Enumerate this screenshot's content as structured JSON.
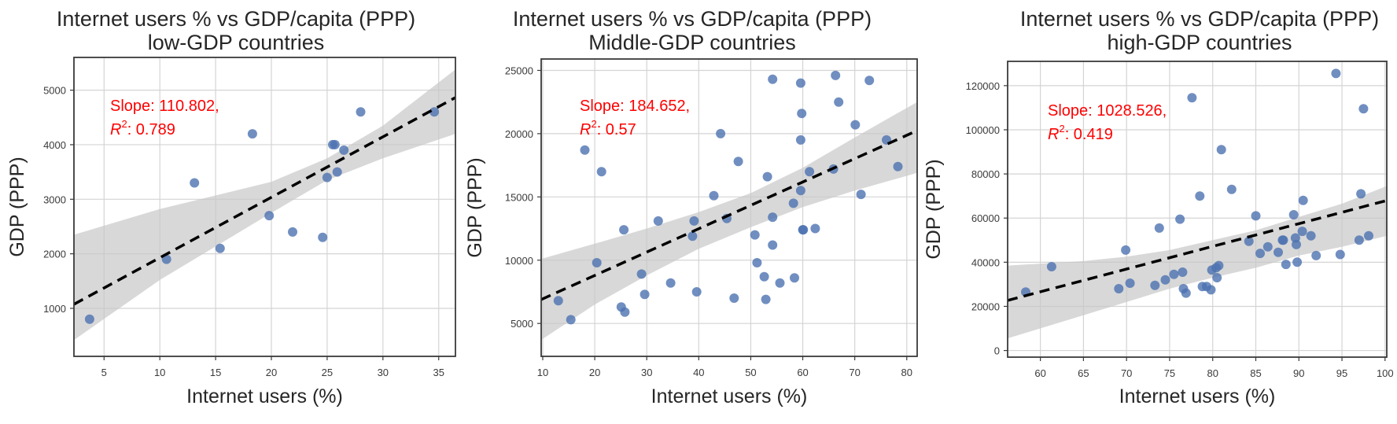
{
  "chart_data": [
    {
      "type": "scatter",
      "title_line1": "Internet users % vs GDP/capita (PPP)",
      "title_line2": "low-GDP countries",
      "xlabel": "Internet users (%)",
      "ylabel": "GDP (PPP)",
      "xlim": [
        2.3,
        36.5
      ],
      "ylim": [
        120,
        5600
      ],
      "xticks": [
        5,
        10,
        15,
        20,
        25,
        30,
        35
      ],
      "yticks": [
        1000,
        2000,
        3000,
        4000,
        5000
      ],
      "grid": true,
      "annotation_slope": "Slope: 110.802,",
      "annotation_r2_label": "R",
      "annotation_r2_sup": "2",
      "annotation_r2_value": ": 0.789",
      "fit": {
        "slope": 110.802,
        "intercept": 820,
        "r2": 0.789
      },
      "ci_band": {
        "x": [
          2.3,
          10,
          20,
          25,
          30,
          36.5
        ],
        "upper": [
          2350,
          2820,
          3320,
          3750,
          4350,
          5380
        ],
        "lower": [
          420,
          1520,
          2750,
          3350,
          3750,
          4200
        ]
      },
      "points": {
        "x": [
          3.7,
          10.6,
          13.1,
          15.4,
          18.3,
          19.8,
          21.9,
          24.6,
          25.0,
          25.5,
          25.7,
          25.9,
          26.5,
          28.0,
          34.6
        ],
        "y": [
          800,
          1900,
          3300,
          2100,
          4200,
          2700,
          2400,
          2300,
          3400,
          4000,
          4000,
          3500,
          3900,
          4600,
          4600
        ]
      }
    },
    {
      "type": "scatter",
      "title_line1": "Internet users % vs GDP/capita (PPP)",
      "title_line2": "Middle-GDP countries",
      "xlabel": "Internet users (%)",
      "ylabel": "GDP (PPP)",
      "xlim": [
        9.7,
        82
      ],
      "ylim": [
        2400,
        25900
      ],
      "xticks": [
        10,
        20,
        30,
        40,
        50,
        60,
        70,
        80
      ],
      "yticks": [
        5000,
        10000,
        15000,
        20000,
        25000
      ],
      "grid": true,
      "annotation_slope": "Slope: 184.652,",
      "annotation_r2_label": "R",
      "annotation_r2_sup": "2",
      "annotation_r2_value": ": 0.57",
      "fit": {
        "slope": 184.652,
        "intercept": 5100,
        "r2": 0.57
      },
      "ci_band": {
        "x": [
          9.7,
          20,
          30,
          40,
          50,
          60,
          70,
          82
        ],
        "upper": [
          10100,
          11300,
          12500,
          13800,
          15300,
          17300,
          19700,
          22500
        ],
        "lower": [
          3700,
          6500,
          8800,
          10900,
          12600,
          14200,
          15500,
          16900
        ]
      },
      "points": {
        "x": [
          13.0,
          15.4,
          18.1,
          20.4,
          21.3,
          25.1,
          25.6,
          25.8,
          29.0,
          29.6,
          32.2,
          34.6,
          38.8,
          39.1,
          39.6,
          42.9,
          44.2,
          45.4,
          46.8,
          47.6,
          50.8,
          51.2,
          52.6,
          52.9,
          53.2,
          54.2,
          54.2,
          54.2,
          55.6,
          58.2,
          58.4,
          59.6,
          59.6,
          59.6,
          59.8,
          60.0,
          60.1,
          61.3,
          62.4,
          65.9,
          66.3,
          66.9,
          70.1,
          71.2,
          72.8,
          76.1,
          78.3
        ],
        "y": [
          6800,
          5300,
          18700,
          9800,
          17000,
          6300,
          12400,
          5900,
          8900,
          7300,
          13100,
          8200,
          11900,
          13100,
          7500,
          15100,
          20000,
          13300,
          7000,
          17800,
          12000,
          9800,
          8700,
          6900,
          16600,
          24300,
          13400,
          11200,
          8200,
          14500,
          8600,
          24000,
          19500,
          15500,
          21600,
          12400,
          12400,
          17000,
          12500,
          17200,
          24600,
          22500,
          20700,
          15200,
          24200,
          19500,
          17400
        ]
      }
    },
    {
      "type": "scatter",
      "title_line1": "Internet users % vs GDP/capita (PPP)",
      "title_line2": "high-GDP countries",
      "xlabel": "Internet users (%)",
      "ylabel": "GDP (PPP)",
      "xlim": [
        56.2,
        100.2
      ],
      "ylim": [
        -3000,
        131000
      ],
      "xticks": [
        60,
        65,
        70,
        75,
        80,
        85,
        90,
        95,
        100
      ],
      "yticks": [
        0,
        20000,
        40000,
        60000,
        80000,
        100000,
        120000
      ],
      "grid": true,
      "annotation_slope": "Slope: 1028.526,",
      "annotation_r2_label": "R",
      "annotation_r2_sup": "2",
      "annotation_r2_value": ": 0.419",
      "fit": {
        "slope": 1028.526,
        "intercept": -35100,
        "r2": 0.419
      },
      "ci_band": {
        "x": [
          56.2,
          65,
          70,
          75,
          80,
          85,
          90,
          95,
          100.2
        ],
        "upper": [
          38500,
          40500,
          42500,
          45500,
          50000,
          54500,
          60500,
          66500,
          74500
        ],
        "lower": [
          5500,
          16000,
          22000,
          28000,
          33000,
          37500,
          43000,
          47000,
          52000
        ]
      },
      "points": {
        "x": [
          58.3,
          61.3,
          69.1,
          69.9,
          70.4,
          73.3,
          73.8,
          74.5,
          75.5,
          76.2,
          76.5,
          76.6,
          76.9,
          77.6,
          78.5,
          78.8,
          79.3,
          79.8,
          79.9,
          80.4,
          80.5,
          80.7,
          81.0,
          82.2,
          84.2,
          85.0,
          85.5,
          86.4,
          87.6,
          88.1,
          88.2,
          88.5,
          89.4,
          89.6,
          89.7,
          89.8,
          90.4,
          90.5,
          91.4,
          92.0,
          94.3,
          94.8,
          97.0,
          97.2,
          97.5,
          98.1
        ],
        "y": [
          26500,
          38000,
          28000,
          45500,
          30500,
          29500,
          55500,
          32000,
          34500,
          59500,
          35500,
          28000,
          26000,
          114500,
          70000,
          29000,
          29000,
          27500,
          36500,
          37500,
          33000,
          38500,
          91000,
          73000,
          49500,
          61000,
          44000,
          47000,
          44500,
          50000,
          50000,
          39000,
          61500,
          51000,
          48000,
          40000,
          54000,
          68000,
          52000,
          43000,
          125500,
          43500,
          50000,
          71000,
          109500,
          52000
        ]
      }
    }
  ]
}
